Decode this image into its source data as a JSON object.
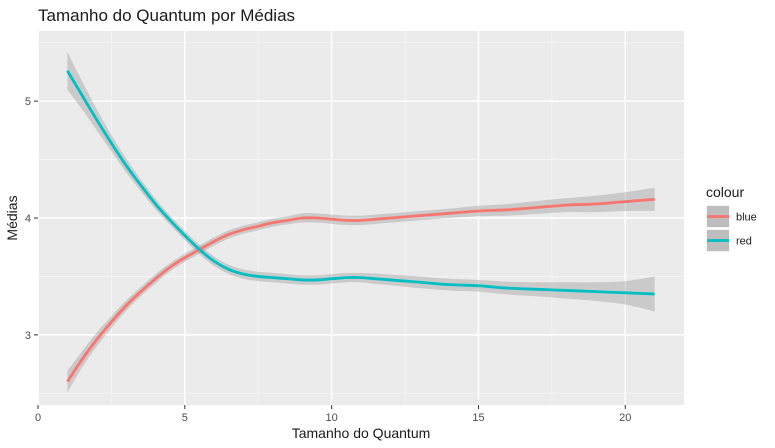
{
  "chart_data": {
    "type": "line",
    "title": "Tamanho do Quantum por Médias",
    "xlabel": "Tamanho do Quantum",
    "ylabel": "Médias",
    "xlim": [
      0,
      22
    ],
    "ylim": [
      2.4,
      5.6
    ],
    "xticks": [
      0,
      5,
      10,
      15,
      20
    ],
    "yticks": [
      3,
      4,
      5
    ],
    "grid": true,
    "smoothing_band": true,
    "legend": {
      "title": "colour",
      "placement": "right"
    },
    "series": [
      {
        "name": "blue",
        "color": "#f8766d",
        "points": [
          [
            1,
            2.6
          ],
          [
            1.5,
            2.79
          ],
          [
            2,
            2.96
          ],
          [
            2.5,
            3.11
          ],
          [
            3,
            3.25
          ],
          [
            3.5,
            3.37
          ],
          [
            4,
            3.48
          ],
          [
            4.5,
            3.58
          ],
          [
            5,
            3.66
          ],
          [
            5.5,
            3.73
          ],
          [
            6,
            3.8
          ],
          [
            6.5,
            3.86
          ],
          [
            7,
            3.9
          ],
          [
            7.5,
            3.93
          ],
          [
            8,
            3.96
          ],
          [
            8.5,
            3.98
          ],
          [
            9,
            4.0
          ],
          [
            9.5,
            4.0
          ],
          [
            10,
            3.99
          ],
          [
            10.5,
            3.98
          ],
          [
            11,
            3.98
          ],
          [
            11.5,
            3.99
          ],
          [
            12,
            4.0
          ],
          [
            13,
            4.02
          ],
          [
            14,
            4.04
          ],
          [
            15,
            4.06
          ],
          [
            16,
            4.07
          ],
          [
            17,
            4.09
          ],
          [
            18,
            4.11
          ],
          [
            19,
            4.12
          ],
          [
            20,
            4.14
          ],
          [
            21,
            4.16
          ]
        ],
        "band_halfwidth": [
          0.09,
          0.07,
          0.06,
          0.05,
          0.045,
          0.04,
          0.04,
          0.035,
          0.035,
          0.035,
          0.035,
          0.035,
          0.035,
          0.035,
          0.035,
          0.035,
          0.04,
          0.04,
          0.04,
          0.04,
          0.04,
          0.04,
          0.04,
          0.04,
          0.04,
          0.045,
          0.05,
          0.055,
          0.06,
          0.07,
          0.08,
          0.1
        ]
      },
      {
        "name": "red",
        "color": "#00bfc4",
        "points": [
          [
            1,
            5.26
          ],
          [
            1.5,
            5.05
          ],
          [
            2,
            4.84
          ],
          [
            2.5,
            4.64
          ],
          [
            3,
            4.45
          ],
          [
            3.5,
            4.28
          ],
          [
            4,
            4.12
          ],
          [
            4.5,
            3.98
          ],
          [
            5,
            3.85
          ],
          [
            5.5,
            3.73
          ],
          [
            6,
            3.63
          ],
          [
            6.5,
            3.56
          ],
          [
            7,
            3.52
          ],
          [
            7.5,
            3.5
          ],
          [
            8,
            3.49
          ],
          [
            8.5,
            3.48
          ],
          [
            9,
            3.47
          ],
          [
            9.5,
            3.47
          ],
          [
            10,
            3.48
          ],
          [
            10.5,
            3.49
          ],
          [
            11,
            3.49
          ],
          [
            11.5,
            3.48
          ],
          [
            12,
            3.47
          ],
          [
            13,
            3.45
          ],
          [
            14,
            3.43
          ],
          [
            15,
            3.42
          ],
          [
            16,
            3.4
          ],
          [
            17,
            3.39
          ],
          [
            18,
            3.38
          ],
          [
            19,
            3.37
          ],
          [
            20,
            3.36
          ],
          [
            21,
            3.35
          ]
        ],
        "band_halfwidth": [
          0.16,
          0.12,
          0.09,
          0.07,
          0.06,
          0.05,
          0.045,
          0.04,
          0.04,
          0.04,
          0.04,
          0.04,
          0.04,
          0.04,
          0.04,
          0.04,
          0.04,
          0.04,
          0.04,
          0.04,
          0.04,
          0.045,
          0.045,
          0.05,
          0.05,
          0.05,
          0.055,
          0.06,
          0.07,
          0.08,
          0.1,
          0.15
        ]
      }
    ]
  }
}
